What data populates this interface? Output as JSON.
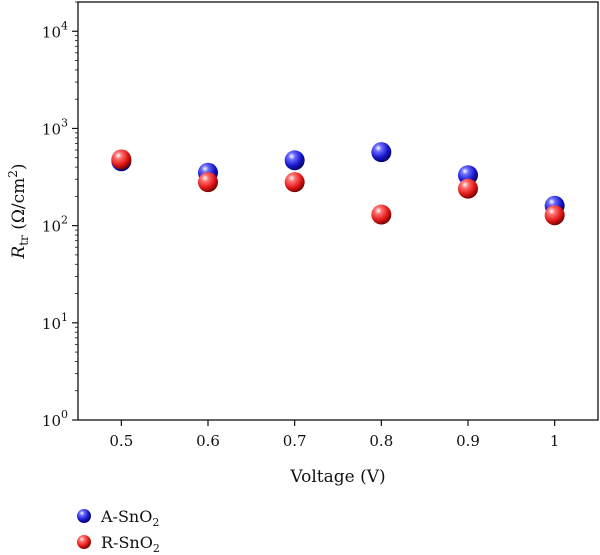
{
  "chart_data": {
    "type": "scatter",
    "xlabel": "Voltage (V)",
    "ylabel": {
      "symbol": "R",
      "subscript": "tr",
      "unit_prefix": " (Ω/cm",
      "unit_sup": "2",
      "unit_suffix": ")"
    },
    "x_ticks": [
      "0.5",
      "0.6",
      "0.7",
      "0.8",
      "0.9",
      "1"
    ],
    "x_tick_values": [
      0.5,
      0.6,
      0.7,
      0.8,
      0.9,
      1.0
    ],
    "xlim": [
      0.45,
      1.05
    ],
    "y_scale": "log",
    "ylim": [
      1,
      20000
    ],
    "y_ticks": [
      {
        "value": 1,
        "base": "10",
        "exp": "0"
      },
      {
        "value": 10,
        "base": "10",
        "exp": "1"
      },
      {
        "value": 100,
        "base": "10",
        "exp": "2"
      },
      {
        "value": 1000,
        "base": "10",
        "exp": "3"
      },
      {
        "value": 10000,
        "base": "10",
        "exp": "4"
      }
    ],
    "grid": false,
    "legend_position": "bottom-left",
    "series": [
      {
        "name_main": "A-SnO",
        "name_sub": "2",
        "color": "#1f1fd6",
        "x": [
          0.5,
          0.6,
          0.7,
          0.8,
          0.9,
          1.0
        ],
        "y": [
          460,
          350,
          470,
          570,
          330,
          160
        ]
      },
      {
        "name_main": "R-SnO",
        "name_sub": "2",
        "color": "#e0191b",
        "x": [
          0.5,
          0.6,
          0.7,
          0.8,
          0.9,
          1.0
        ],
        "y": [
          480,
          280,
          280,
          130,
          240,
          128
        ]
      }
    ]
  }
}
